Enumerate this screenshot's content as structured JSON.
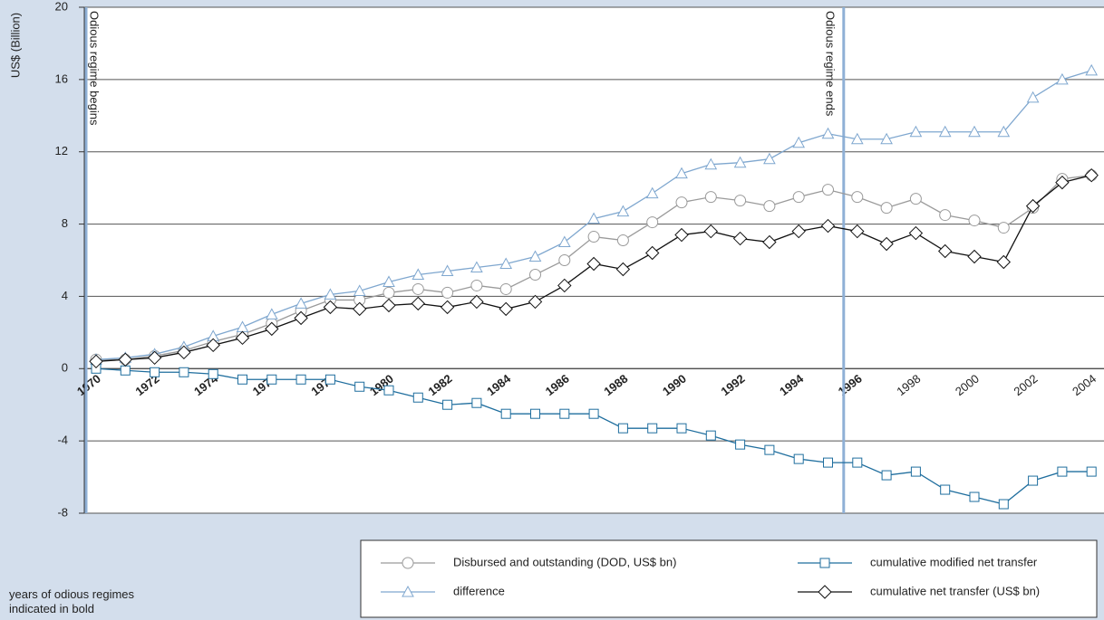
{
  "chart_data": {
    "type": "line",
    "y_label": "US$ (Billion)",
    "footnote": "years of odious regimes indicated in bold",
    "annotations": [
      "Odious regime begins",
      "Odious regime ends"
    ],
    "odious_period": [
      "1970",
      "1996"
    ],
    "categories": [
      "1970",
      null,
      "1972",
      null,
      "1974",
      null,
      "1976",
      null,
      "1978",
      null,
      "1980",
      null,
      "1982",
      null,
      "1984",
      null,
      "1986",
      null,
      "1988",
      null,
      "1990",
      null,
      "1992",
      null,
      "1994",
      null,
      "1996",
      null,
      "1998",
      null,
      "2000",
      null,
      "2002",
      null,
      "2004"
    ],
    "ylim": [
      -8,
      20
    ],
    "yticks": [
      -8,
      -4,
      0,
      4,
      8,
      12,
      16,
      20
    ],
    "grid": true,
    "series": [
      {
        "name": "Disbursed and outstanding (DOD, US$ bn)",
        "color": "#9a9a9a",
        "marker": "circle",
        "values": [
          0.5,
          0.5,
          0.7,
          1.0,
          1.5,
          1.9,
          2.5,
          3.2,
          3.8,
          3.8,
          4.2,
          4.4,
          4.2,
          4.6,
          4.4,
          5.2,
          6.0,
          7.3,
          7.1,
          8.1,
          9.2,
          9.5,
          9.3,
          9.0,
          9.5,
          9.9,
          9.5,
          8.9,
          9.4,
          8.5,
          8.2,
          7.8,
          8.9,
          10.5,
          10.7
        ]
      },
      {
        "name": "difference",
        "color": "#7fa7cf",
        "marker": "triangle",
        "values": [
          0.5,
          0.6,
          0.8,
          1.2,
          1.8,
          2.3,
          3.0,
          3.6,
          4.1,
          4.3,
          4.8,
          5.2,
          5.4,
          5.6,
          5.8,
          6.2,
          7.0,
          8.3,
          8.7,
          9.7,
          10.8,
          11.3,
          11.4,
          11.6,
          12.5,
          13.0,
          12.7,
          12.7,
          13.1,
          13.1,
          13.1,
          13.1,
          15.0,
          16.0,
          16.5
        ]
      },
      {
        "name": "cumulative modified net transfer",
        "color": "#1f6e9e",
        "marker": "square",
        "values": [
          0,
          -0.1,
          -0.2,
          -0.2,
          -0.3,
          -0.6,
          -0.6,
          -0.6,
          -0.6,
          -1.0,
          -1.2,
          -1.6,
          -2.0,
          -1.9,
          -2.5,
          -2.5,
          -2.5,
          -2.5,
          -3.3,
          -3.3,
          -3.3,
          -3.7,
          -4.2,
          -4.5,
          -5.0,
          -5.2,
          -5.2,
          -5.9,
          -5.7,
          -6.7,
          -7.1,
          -7.5,
          -6.2,
          -5.7,
          -5.7
        ]
      },
      {
        "name": "cumulative net transfer (US$ bn)",
        "color": "#111111",
        "marker": "diamond",
        "values": [
          0.4,
          0.5,
          0.6,
          0.9,
          1.3,
          1.7,
          2.2,
          2.8,
          3.4,
          3.3,
          3.5,
          3.6,
          3.4,
          3.7,
          3.3,
          3.7,
          4.6,
          5.8,
          5.5,
          6.4,
          7.4,
          7.6,
          7.2,
          7.0,
          7.6,
          7.9,
          7.6,
          6.9,
          7.5,
          6.5,
          6.2,
          5.9,
          9.0,
          10.3,
          10.7
        ]
      }
    ]
  }
}
